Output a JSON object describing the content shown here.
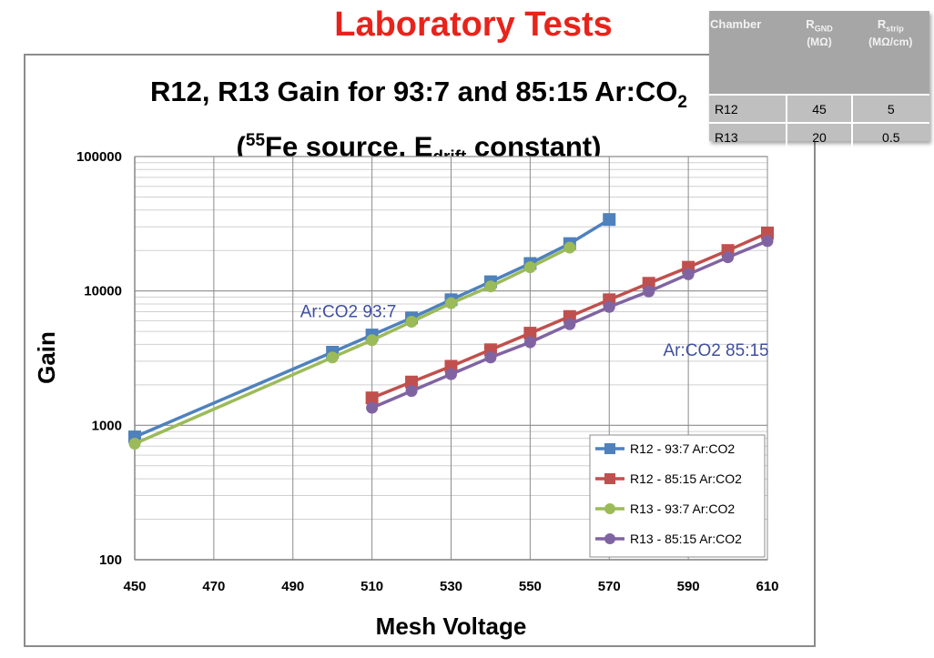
{
  "slide_title": "Laboratory Tests",
  "chart_title": {
    "line1_main": "R12, R13 Gain for 93:7 and 85:15 Ar:CO",
    "line1_sub": "2",
    "line2_open": "(",
    "line2_sup": "55",
    "line2_mid": "Fe source, E",
    "line2_sub": "drift",
    "line2_end": " constant)"
  },
  "table": {
    "headers": {
      "chamber": "Chamber",
      "rgnd_main": "R",
      "rgnd_sub": "GND",
      "rgnd_unit": "(MΩ)",
      "rstrip_main": "R",
      "rstrip_sub": "strip",
      "rstrip_unit": "(MΩ/cm)"
    },
    "rows": [
      {
        "chamber": "R12",
        "rgnd": "45",
        "rstrip": "5"
      },
      {
        "chamber": "R13",
        "rgnd": "20",
        "rstrip": "0.5"
      }
    ]
  },
  "chart_data": {
    "type": "line",
    "xlabel": "Mesh Voltage",
    "ylabel": "Gain",
    "xlim": [
      450,
      610
    ],
    "ylim": [
      100,
      100000
    ],
    "y_scale": "log",
    "x_ticks": [
      "450",
      "470",
      "490",
      "510",
      "530",
      "550",
      "570",
      "590",
      "610"
    ],
    "y_ticks": [
      "100",
      "1000",
      "10000",
      "100000"
    ],
    "grid": true,
    "legend_position": "bottom-right",
    "annotations": [
      {
        "text": "Ar:CO2 93:7",
        "x": 504,
        "y": 7000
      },
      {
        "text": "Ar:CO2 85:15",
        "x": 597,
        "y": 3600
      }
    ],
    "series": [
      {
        "name": "R12 - 93:7 Ar:CO2",
        "color": "#4f81bd",
        "marker": "square",
        "x": [
          450,
          500,
          510,
          520,
          530,
          540,
          550,
          560,
          570
        ],
        "y": [
          820,
          3500,
          4700,
          6300,
          8600,
          11700,
          16000,
          22500,
          34000
        ]
      },
      {
        "name": "R12 - 85:15 Ar:CO2",
        "color": "#c0504d",
        "marker": "square",
        "x": [
          510,
          520,
          530,
          540,
          550,
          560,
          570,
          580,
          590,
          600,
          610
        ],
        "y": [
          1600,
          2100,
          2750,
          3650,
          4850,
          6450,
          8600,
          11400,
          15000,
          20000,
          27000
        ]
      },
      {
        "name": "R13 - 93:7 Ar:CO2",
        "color": "#9bbb59",
        "marker": "circle",
        "x": [
          450,
          500,
          510,
          520,
          530,
          540,
          550,
          560
        ],
        "y": [
          730,
          3200,
          4300,
          5900,
          8100,
          10800,
          15000,
          21000
        ]
      },
      {
        "name": "R13 - 85:15 Ar:CO2",
        "color": "#8064a2",
        "marker": "circle",
        "x": [
          510,
          520,
          530,
          540,
          550,
          560,
          570,
          580,
          590,
          600,
          610
        ],
        "y": [
          1350,
          1800,
          2400,
          3200,
          4150,
          5650,
          7600,
          9900,
          13300,
          17800,
          23500
        ]
      }
    ]
  }
}
